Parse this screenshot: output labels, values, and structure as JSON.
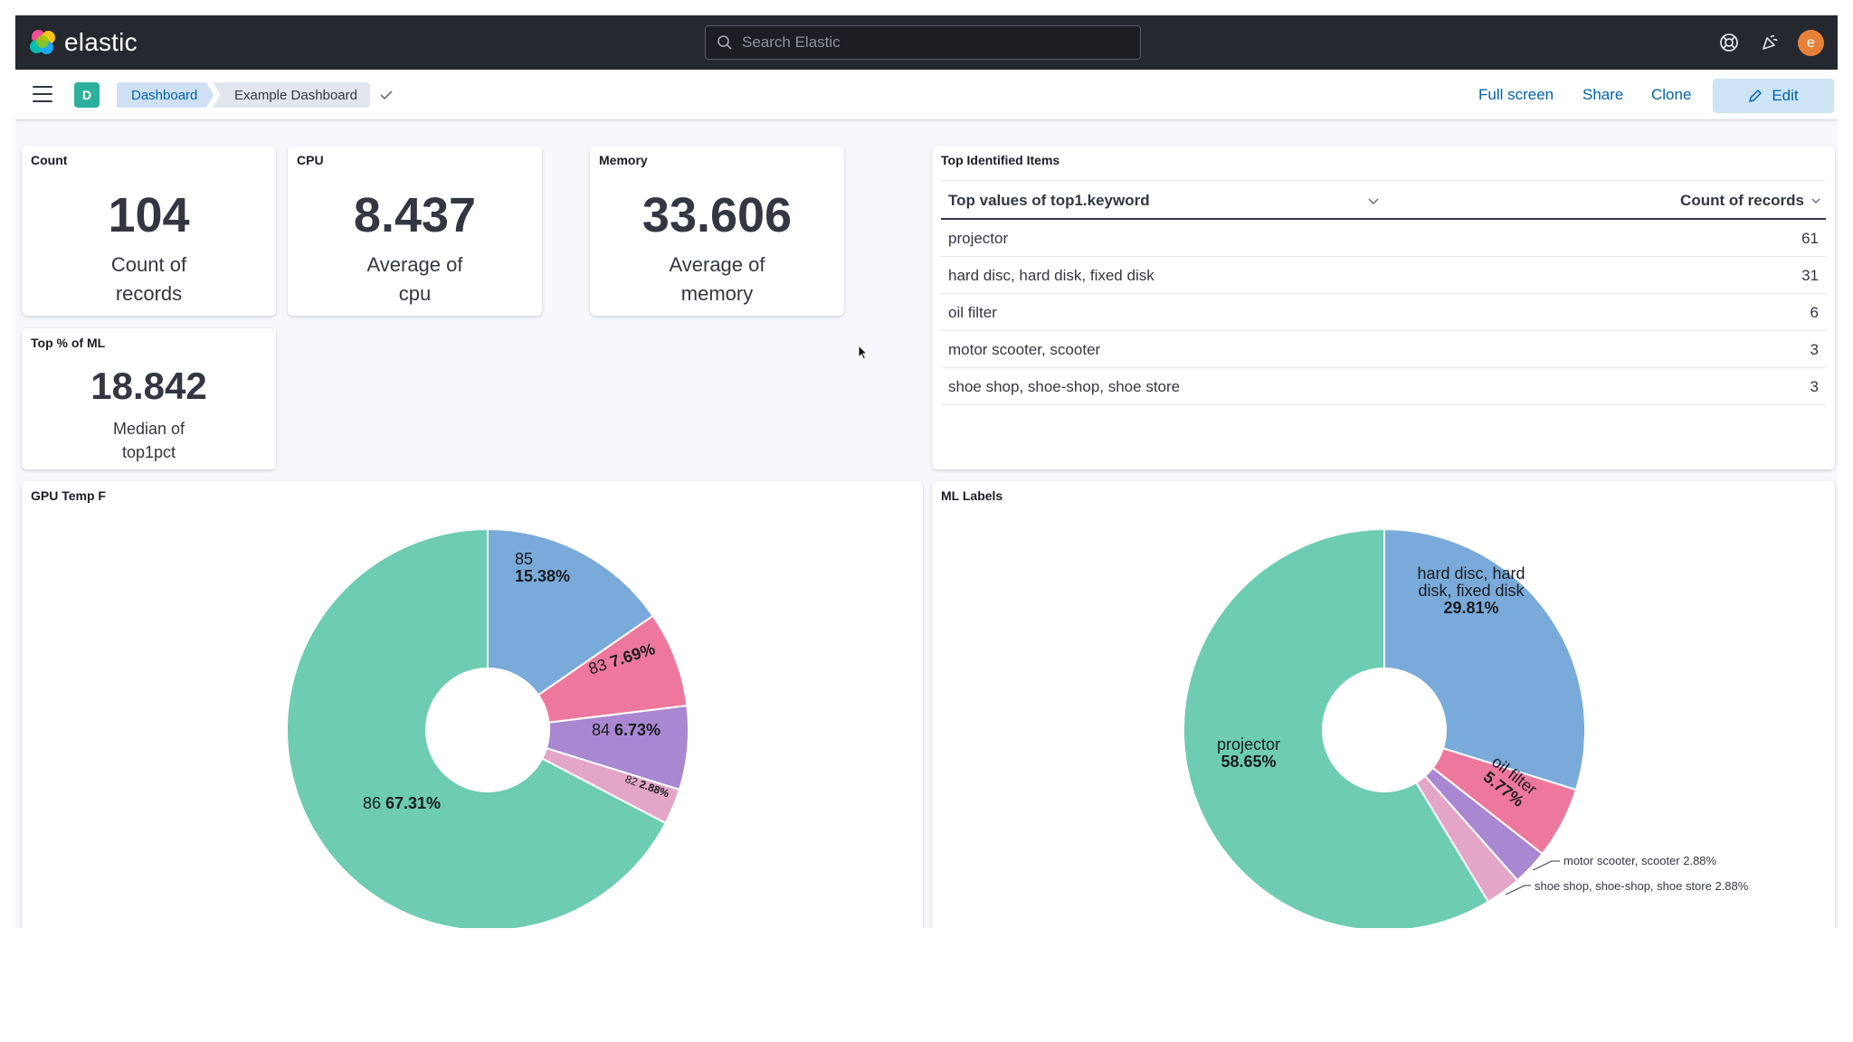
{
  "header": {
    "brand": "elastic",
    "search_placeholder": "Search Elastic",
    "avatar_initial": "e"
  },
  "toolbar": {
    "space_initial": "D",
    "breadcrumbs": [
      "Dashboard",
      "Example Dashboard"
    ],
    "links": [
      "Full screen",
      "Share",
      "Clone"
    ],
    "edit_label": "Edit"
  },
  "metrics": {
    "count": {
      "title": "Count",
      "value": "104",
      "label_line1": "Count of",
      "label_line2": "records"
    },
    "cpu": {
      "title": "CPU",
      "value": "8.437",
      "label_line1": "Average of",
      "label_line2": "cpu"
    },
    "memory": {
      "title": "Memory",
      "value": "33.606",
      "label_line1": "Average of",
      "label_line2": "memory"
    },
    "ml": {
      "title": "Top % of ML",
      "value": "18.842",
      "label_line1": "Median of",
      "label_line2": "top1pct"
    }
  },
  "top_items": {
    "title": "Top Identified Items",
    "col1": "Top values of top1.keyword",
    "col2": "Count of records",
    "rows": [
      {
        "name": "projector",
        "count": "61"
      },
      {
        "name": "hard disc, hard disk, fixed disk",
        "count": "31"
      },
      {
        "name": "oil filter",
        "count": "6"
      },
      {
        "name": "motor scooter, scooter",
        "count": "3"
      },
      {
        "name": "shoe shop, shoe-shop, shoe store",
        "count": "3"
      }
    ]
  },
  "gpu_panel": {
    "title": "GPU Temp F"
  },
  "ml_panel": {
    "title": "ML Labels"
  },
  "chart_data": [
    {
      "type": "pie",
      "title": "GPU Temp F",
      "donut": true,
      "slices": [
        {
          "label": "85",
          "pct_text": "15.38%",
          "value": 15.38,
          "color": "#79aad9"
        },
        {
          "label": "83",
          "pct_text": "7.69%",
          "value": 7.69,
          "color": "#ee789d"
        },
        {
          "label": "84",
          "pct_text": "6.73%",
          "value": 6.73,
          "color": "#a987d1"
        },
        {
          "label": "82",
          "pct_text": "2.88%",
          "value": 2.88,
          "color": "#e4a6c7"
        },
        {
          "label": "86",
          "pct_text": "67.31%",
          "value": 67.31,
          "color": "#6dccb1"
        }
      ]
    },
    {
      "type": "pie",
      "title": "ML Labels",
      "donut": true,
      "slices": [
        {
          "label": "hard disc, hard disk, fixed disk",
          "pct_text": "29.81%",
          "value": 29.81,
          "color": "#79aad9"
        },
        {
          "label": "oil filter",
          "pct_text": "5.77%",
          "value": 5.77,
          "color": "#ee789d"
        },
        {
          "label": "motor scooter, scooter",
          "pct_text": "2.88%",
          "value": 2.88,
          "color": "#a987d1"
        },
        {
          "label": "shoe shop, shoe-shop, shoe store",
          "pct_text": "2.88%",
          "value": 2.88,
          "color": "#e4a6c7"
        },
        {
          "label": "projector",
          "pct_text": "58.65%",
          "value": 58.65,
          "color": "#6dccb1"
        }
      ]
    }
  ]
}
